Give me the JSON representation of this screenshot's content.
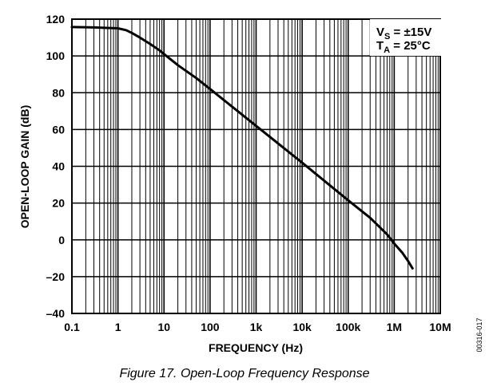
{
  "chart_data": {
    "type": "line",
    "xlabel": "FREQUENCY (Hz)",
    "ylabel": "OPEN-LOOP GAIN (dB)",
    "x_scale": "log",
    "xlim": [
      0.1,
      10000000
    ],
    "ylim": [
      -40,
      120
    ],
    "x_ticks": [
      0.1,
      1,
      10,
      100,
      1000,
      10000,
      100000,
      1000000,
      10000000
    ],
    "x_tick_labels": [
      "0.1",
      "1",
      "10",
      "100",
      "1k",
      "10k",
      "100k",
      "1M",
      "10M"
    ],
    "y_ticks": [
      -40,
      -20,
      0,
      20,
      40,
      60,
      80,
      100,
      120
    ],
    "y_tick_labels": [
      "–40",
      "–20",
      "0",
      "20",
      "40",
      "60",
      "80",
      "100",
      "120"
    ],
    "grid": true,
    "annotations": [
      {
        "label": "V",
        "sub": "S",
        "value": " = ±15V"
      },
      {
        "label": "T",
        "sub": "A",
        "value": " = 25°C"
      }
    ],
    "series": [
      {
        "x": [
          0.1,
          0.3,
          1,
          1.5,
          2,
          3,
          5,
          8,
          10,
          20,
          50,
          100,
          1000,
          10000,
          100000,
          300000,
          700000,
          1000000,
          1500000,
          2000000,
          2500000
        ],
        "y": [
          115.7,
          115.5,
          115.0,
          114.0,
          112.5,
          110.0,
          106.5,
          103.0,
          101.0,
          95.0,
          88.0,
          82.0,
          62.0,
          42.0,
          21.5,
          12.0,
          3.0,
          -2.0,
          -7.0,
          -11.5,
          -15.5
        ]
      }
    ]
  },
  "caption": "Figure 17. Open-Loop Frequency Response",
  "doc_id": "00316-017"
}
